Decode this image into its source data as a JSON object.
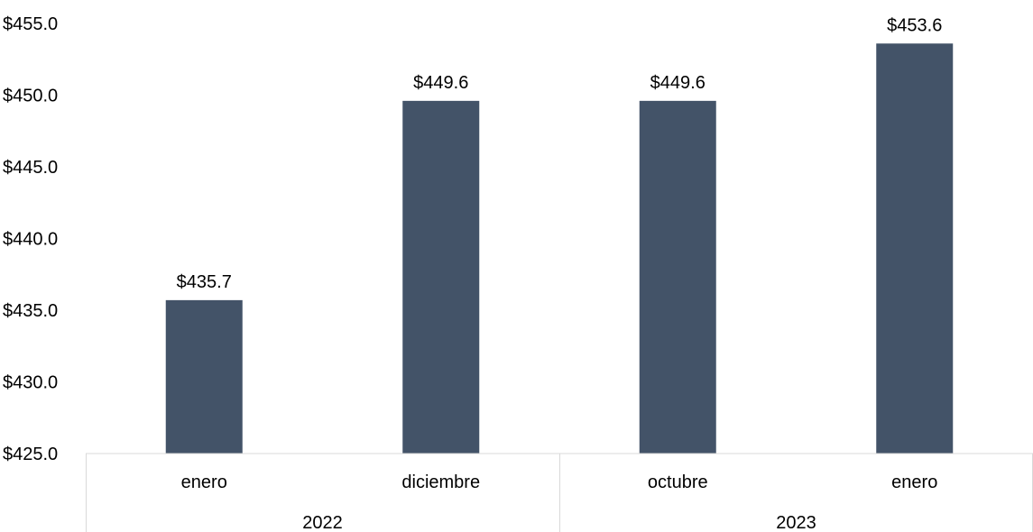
{
  "chart_data": {
    "type": "bar",
    "title": "",
    "xlabel": "",
    "ylabel": "",
    "categories": [
      "enero",
      "diciembre",
      "octubre",
      "enero"
    ],
    "groups": [
      {
        "label": "2022",
        "count": 2
      },
      {
        "label": "2023",
        "count": 2
      }
    ],
    "values": [
      435.7,
      449.6,
      449.6,
      453.6
    ],
    "data_labels": [
      "$435.7",
      "$449.6",
      "$449.6",
      "$453.6"
    ],
    "ylim": [
      425.0,
      455.0
    ],
    "yticks": [
      425.0,
      430.0,
      435.0,
      440.0,
      445.0,
      450.0,
      455.0
    ],
    "ytick_labels": [
      "$425.0",
      "$430.0",
      "$435.0",
      "$440.0",
      "$445.0",
      "$450.0",
      "$455.0"
    ],
    "grid": false,
    "legend": "none",
    "bar_color": "#435368",
    "axis_color": "#d9d9d9"
  }
}
